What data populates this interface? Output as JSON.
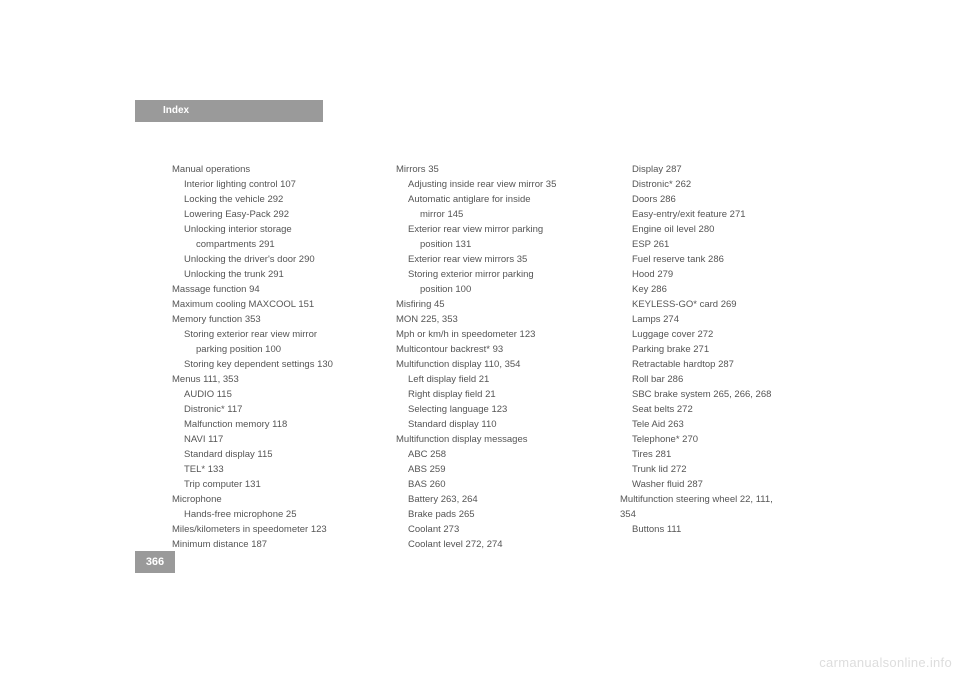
{
  "header": {
    "tab_label": "Index"
  },
  "page_number": "366",
  "watermark": "carmanualsonline.info",
  "columns": [
    [
      {
        "t": "Manual operations",
        "i": 0
      },
      {
        "t": "Interior lighting control    107",
        "i": 1
      },
      {
        "t": "Locking the vehicle    292",
        "i": 1
      },
      {
        "t": "Lowering Easy-Pack    292",
        "i": 1
      },
      {
        "t": "Unlocking interior storage",
        "i": 1
      },
      {
        "t": "compartments    291",
        "i": 2
      },
      {
        "t": "Unlocking the driver's door    290",
        "i": 1
      },
      {
        "t": "Unlocking the trunk    291",
        "i": 1
      },
      {
        "t": "Massage function    94",
        "i": 0
      },
      {
        "t": "Maximum cooling MAXCOOL    151",
        "i": 0
      },
      {
        "t": "Memory function    353",
        "i": 0
      },
      {
        "t": "Storing exterior rear view mirror",
        "i": 1
      },
      {
        "t": "parking position    100",
        "i": 2
      },
      {
        "t": "Storing key dependent settings    130",
        "i": 1
      },
      {
        "t": "Menus    111, 353",
        "i": 0
      },
      {
        "t": "AUDIO    115",
        "i": 1
      },
      {
        "t": "Distronic*    117",
        "i": 1
      },
      {
        "t": "Malfunction memory    118",
        "i": 1
      },
      {
        "t": "NAVI    117",
        "i": 1
      },
      {
        "t": "Standard display    115",
        "i": 1
      },
      {
        "t": "TEL*    133",
        "i": 1
      },
      {
        "t": "Trip computer    131",
        "i": 1
      },
      {
        "t": "Microphone",
        "i": 0
      },
      {
        "t": "Hands-free microphone    25",
        "i": 1
      },
      {
        "t": "Miles/kilometers in speedometer    123",
        "i": 0
      },
      {
        "t": "Minimum distance    187",
        "i": 0
      }
    ],
    [
      {
        "t": "Mirrors    35",
        "i": 0
      },
      {
        "t": "Adjusting inside rear view mirror    35",
        "i": 1
      },
      {
        "t": "Automatic antiglare for inside",
        "i": 1
      },
      {
        "t": "mirror    145",
        "i": 2
      },
      {
        "t": "Exterior rear view mirror parking",
        "i": 1
      },
      {
        "t": "position    131",
        "i": 2
      },
      {
        "t": "Exterior rear view mirrors    35",
        "i": 1
      },
      {
        "t": "Storing exterior mirror parking",
        "i": 1
      },
      {
        "t": "position    100",
        "i": 2
      },
      {
        "t": "Misfiring    45",
        "i": 0
      },
      {
        "t": "MON    225, 353",
        "i": 0
      },
      {
        "t": "Mph or km/h in speedometer    123",
        "i": 0
      },
      {
        "t": "Multicontour backrest*    93",
        "i": 0
      },
      {
        "t": "Multifunction display    110, 354",
        "i": 0
      },
      {
        "t": "Left display field    21",
        "i": 1
      },
      {
        "t": "Right display field    21",
        "i": 1
      },
      {
        "t": "Selecting language    123",
        "i": 1
      },
      {
        "t": "Standard display    110",
        "i": 1
      },
      {
        "t": "Multifunction display messages",
        "i": 0
      },
      {
        "t": "ABC    258",
        "i": 1
      },
      {
        "t": "ABS    259",
        "i": 1
      },
      {
        "t": "BAS    260",
        "i": 1
      },
      {
        "t": "Battery    263, 264",
        "i": 1
      },
      {
        "t": "Brake pads    265",
        "i": 1
      },
      {
        "t": "Coolant    273",
        "i": 1
      },
      {
        "t": "Coolant level    272, 274",
        "i": 1
      }
    ],
    [
      {
        "t": "Display    287",
        "i": 1
      },
      {
        "t": "Distronic*    262",
        "i": 1
      },
      {
        "t": "Doors    286",
        "i": 1
      },
      {
        "t": "Easy-entry/exit feature    271",
        "i": 1
      },
      {
        "t": "Engine oil level    280",
        "i": 1
      },
      {
        "t": "ESP    261",
        "i": 1
      },
      {
        "t": "Fuel reserve tank    286",
        "i": 1
      },
      {
        "t": "Hood    279",
        "i": 1
      },
      {
        "t": "Key    286",
        "i": 1
      },
      {
        "t": "KEYLESS-GO* card    269",
        "i": 1
      },
      {
        "t": "Lamps    274",
        "i": 1
      },
      {
        "t": "Luggage cover    272",
        "i": 1
      },
      {
        "t": "Parking brake    271",
        "i": 1
      },
      {
        "t": "Retractable hardtop    287",
        "i": 1
      },
      {
        "t": "Roll bar    286",
        "i": 1
      },
      {
        "t": "SBC brake system    265, 266, 268",
        "i": 1
      },
      {
        "t": "Seat belts    272",
        "i": 1
      },
      {
        "t": "Tele Aid    263",
        "i": 1
      },
      {
        "t": "Telephone*    270",
        "i": 1
      },
      {
        "t": "Tires    281",
        "i": 1
      },
      {
        "t": "Trunk lid    272",
        "i": 1
      },
      {
        "t": "Washer fluid    287",
        "i": 1
      },
      {
        "t": "Multifunction steering wheel    22, 111,",
        "i": 0
      },
      {
        "t": "354",
        "i": 0
      },
      {
        "t": "Buttons    111",
        "i": 1
      }
    ]
  ]
}
